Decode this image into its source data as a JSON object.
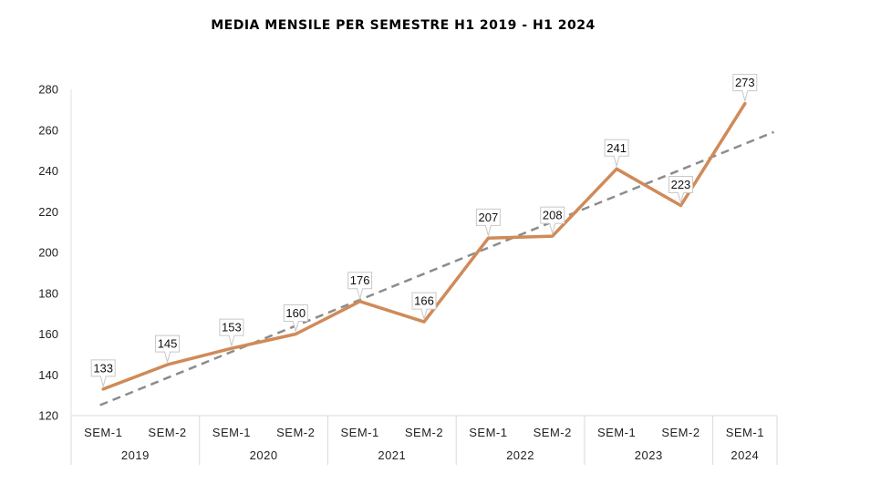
{
  "chart_data": {
    "type": "line",
    "title": "MEDIA MENSILE PER SEMESTRE H1 2019 - H1 2024",
    "ylim": [
      120,
      280
    ],
    "yticks": [
      120,
      140,
      160,
      180,
      200,
      220,
      240,
      260,
      280
    ],
    "categories": [
      "SEM-1",
      "SEM-2",
      "SEM-1",
      "SEM-2",
      "SEM-1",
      "SEM-2",
      "SEM-1",
      "SEM-2",
      "SEM-1",
      "SEM-2",
      "SEM-1"
    ],
    "years": [
      {
        "label": "2019",
        "count": 2
      },
      {
        "label": "2020",
        "count": 2
      },
      {
        "label": "2021",
        "count": 2
      },
      {
        "label": "2022",
        "count": 2
      },
      {
        "label": "2023",
        "count": 2
      },
      {
        "label": "2024",
        "count": 1
      }
    ],
    "series": [
      {
        "values": [
          133,
          145,
          153,
          160,
          176,
          166,
          207,
          208,
          241,
          223,
          273
        ],
        "color": "#d08a58"
      }
    ],
    "trendline": {
      "type": "linear",
      "style": "dashed",
      "color": "#8c8c8c"
    },
    "data_labels": true,
    "grid": false,
    "legend": "none"
  }
}
